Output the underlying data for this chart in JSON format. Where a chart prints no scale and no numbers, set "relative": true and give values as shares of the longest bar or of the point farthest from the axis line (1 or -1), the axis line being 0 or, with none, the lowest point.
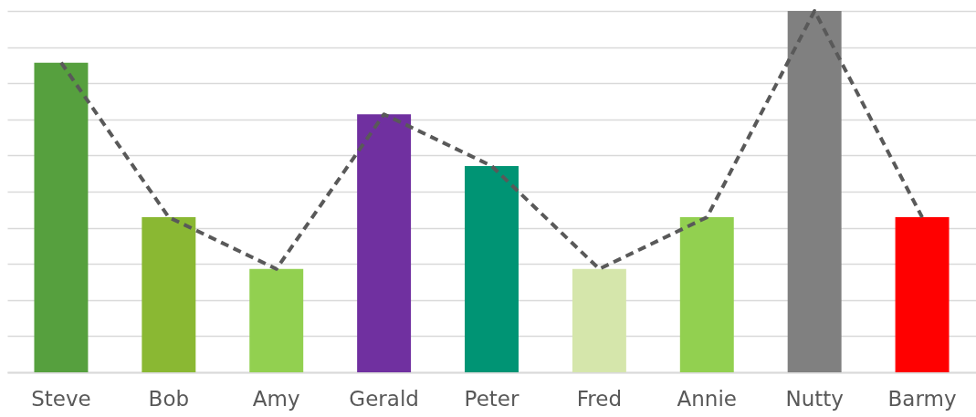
{
  "chart_data": {
    "type": "bar",
    "relative": true,
    "grid": "y",
    "categories": [
      "Steve",
      "Bob",
      "Amy",
      "Gerald",
      "Peter",
      "Fred",
      "Annie",
      "Nutty",
      "Barmy"
    ],
    "series": [
      {
        "colors": [
          "#56a03e",
          "#8ab833",
          "#92d050",
          "#7030a0",
          "#009474",
          "#d5e6ab",
          "#92d050",
          "#808080",
          "#ff0000"
        ],
        "values": [
          0.857,
          0.429,
          0.286,
          0.714,
          0.571,
          0.286,
          0.429,
          1,
          0.429
        ]
      },
      {
        "type": "line",
        "color": "#595959",
        "line_style": "dashed",
        "values": [
          0.857,
          0.429,
          0.286,
          0.714,
          0.571,
          0.286,
          0.429,
          1,
          0.429
        ]
      }
    ]
  }
}
